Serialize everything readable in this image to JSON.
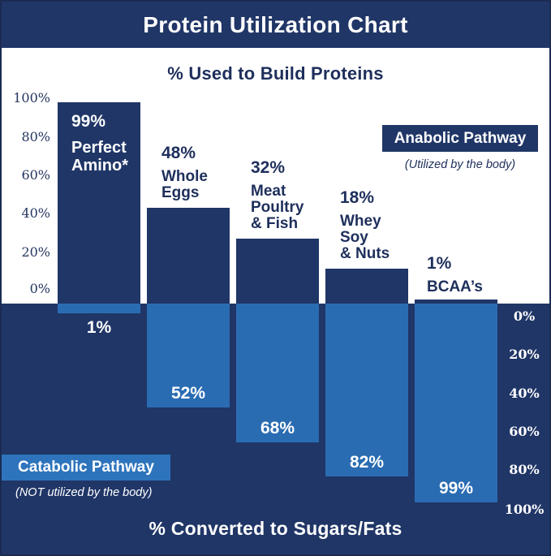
{
  "title": "Protein Utilization Chart",
  "upper": {
    "heading": "% Used to Build Proteins",
    "axis_ticks": [
      "100%",
      "80%",
      "60%",
      "40%",
      "20%",
      "0%"
    ],
    "legend": {
      "label": "Anabolic Pathway",
      "note": "(Utilized by the body)"
    }
  },
  "lower": {
    "heading": "% Converted to Sugars/Fats",
    "axis_ticks": [
      "0%",
      "20%",
      "40%",
      "60%",
      "80%",
      "100%"
    ],
    "legend": {
      "label": "Catabolic Pathway",
      "note": "(NOT utilized by the body)"
    }
  },
  "bars": [
    {
      "up_pct": "99%",
      "name": "Perfect\nAmino*",
      "down_pct": "1%"
    },
    {
      "up_pct": "48%",
      "name": "Whole\nEggs",
      "down_pct": "52%"
    },
    {
      "up_pct": "32%",
      "name": "Meat\nPoultry\n& Fish",
      "down_pct": "68%"
    },
    {
      "up_pct": "18%",
      "name": "Whey\nSoy\n& Nuts",
      "down_pct": "82%"
    },
    {
      "up_pct": "1%",
      "name": "BCAA’s",
      "down_pct": "99%"
    }
  ],
  "colors": {
    "navy": "#203667",
    "light_blue": "#2A6CB2",
    "legend_blue": "#2E74BC",
    "text_navy": "#1E2F5C",
    "white": "#FFFFFF"
  },
  "chart_data": {
    "type": "bar",
    "title": "Protein Utilization Chart",
    "categories": [
      "Perfect Amino*",
      "Whole Eggs",
      "Meat Poultry & Fish",
      "Whey Soy & Nuts",
      "BCAA's"
    ],
    "series": [
      {
        "name": "Anabolic Pathway - % Used to Build Proteins (Utilized by the body)",
        "values": [
          99,
          48,
          32,
          18,
          1
        ]
      },
      {
        "name": "Catabolic Pathway - % Converted to Sugars/Fats (NOT utilized by the body)",
        "values": [
          1,
          52,
          68,
          82,
          99
        ]
      }
    ],
    "xlabel": "",
    "ylabel_up": "% Used to Build Proteins",
    "ylabel_down": "% Converted to Sugars/Fats",
    "ylim": [
      0,
      100
    ],
    "grid": false,
    "orientation": "diverging-vertical",
    "legend_position": "anabolic box upper-right, catabolic box lower-left"
  }
}
